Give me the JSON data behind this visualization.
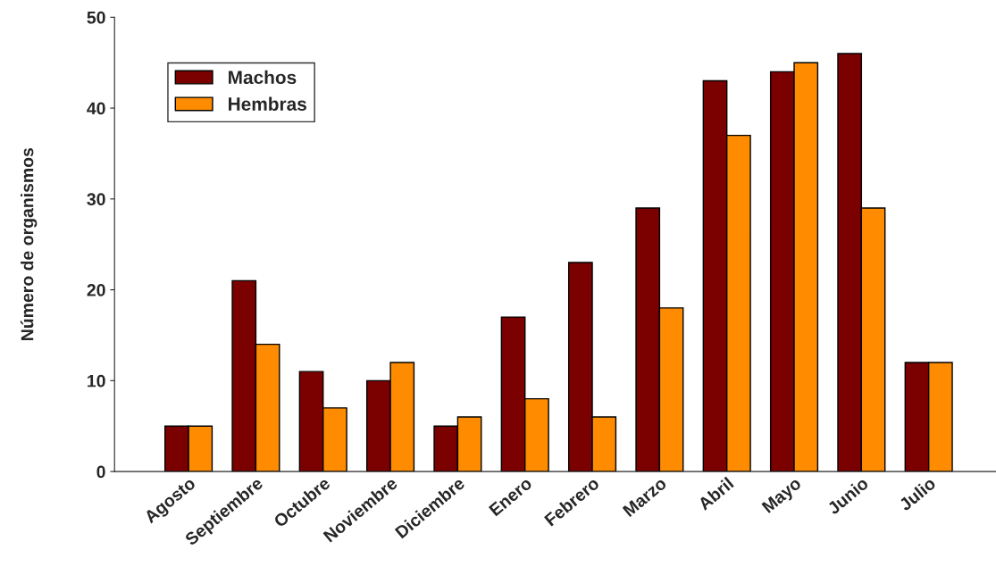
{
  "chart_data": {
    "type": "bar",
    "ylabel": "Número de organismos",
    "categories": [
      "Agosto",
      "Septiembre",
      "Octubre",
      "Noviembre",
      "Diciembre",
      "Enero",
      "Febrero",
      "Marzo",
      "Abril",
      "Mayo",
      "Junio",
      "Julio"
    ],
    "series": [
      {
        "name": "Machos",
        "color": "#7b0000",
        "values": [
          5,
          21,
          11,
          10,
          5,
          17,
          23,
          29,
          43,
          44,
          46,
          12
        ]
      },
      {
        "name": "Hembras",
        "color": "#ff8c00",
        "values": [
          5,
          14,
          7,
          12,
          6,
          8,
          6,
          18,
          37,
          45,
          29,
          12
        ]
      }
    ],
    "ylim": [
      0,
      50
    ],
    "yticks": [
      0,
      10,
      20,
      30,
      40,
      50
    ],
    "grid": false,
    "legend": "top left"
  }
}
